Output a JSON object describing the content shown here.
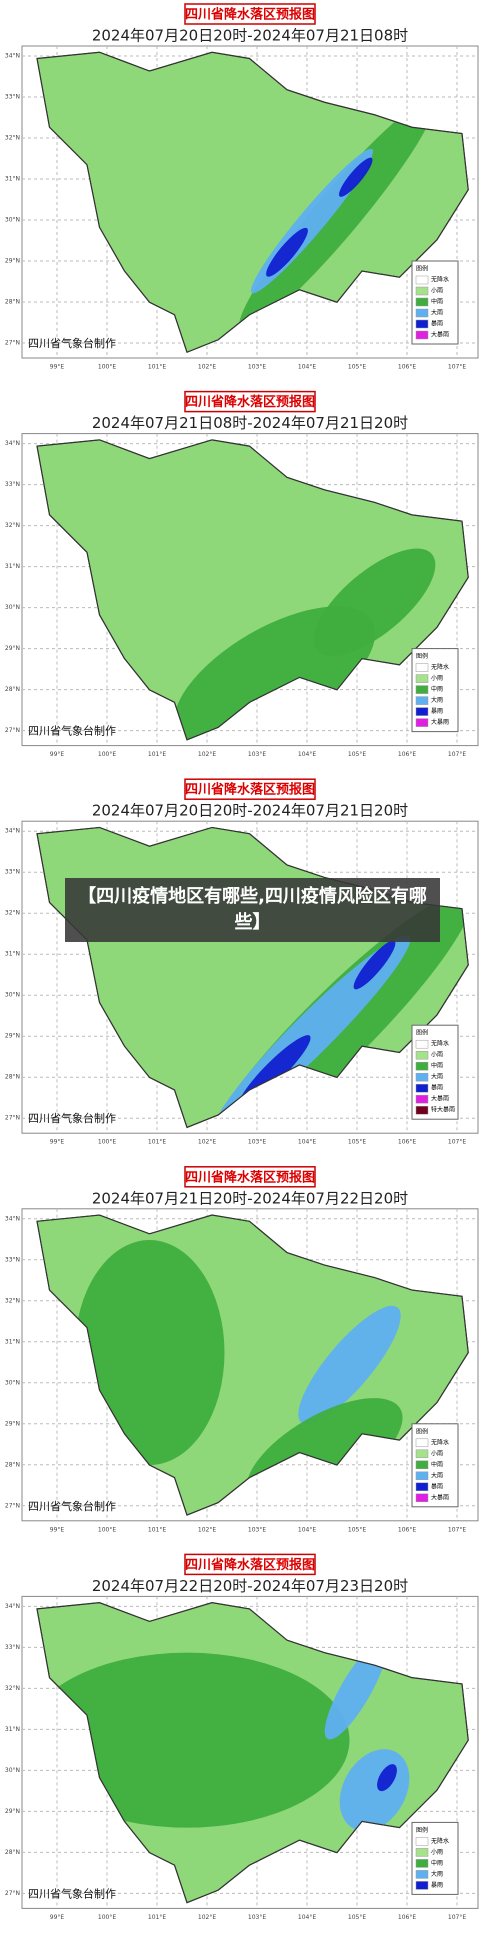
{
  "caption": "【四川疫情地区有哪些,四川疫情风险区有哪些】",
  "lat_labels": [
    "34°N",
    "33°N",
    "32°N",
    "31°N",
    "30°N",
    "29°N",
    "28°N",
    "27°N"
  ],
  "lon_labels": [
    "99°E",
    "100°E",
    "101°E",
    "102°E",
    "103°E",
    "104°E",
    "105°E",
    "106°E",
    "107°E"
  ],
  "panels": [
    {
      "header": "四川省降水落区预报图",
      "period": "2024年07月20日20时-2024年07月21日08时",
      "credit": "四川省气象台制作",
      "legend_title": "图例",
      "legend": [
        {
          "label": "无降水",
          "color": "#ffffff"
        },
        {
          "label": "小雨",
          "color": "#a6e28c"
        },
        {
          "label": "中雨",
          "color": "#3fae3f"
        },
        {
          "label": "大雨",
          "color": "#5fb0f0"
        },
        {
          "label": "暴雨",
          "color": "#1020d0"
        },
        {
          "label": "大暴雨",
          "color": "#e020e0"
        }
      ]
    },
    {
      "header": "四川省降水落区预报图",
      "period": "2024年07月21日08时-2024年07月21日20时",
      "credit": "四川省气象台制作",
      "legend_title": "图例",
      "legend": [
        {
          "label": "无降水",
          "color": "#ffffff"
        },
        {
          "label": "小雨",
          "color": "#a6e28c"
        },
        {
          "label": "中雨",
          "color": "#3fae3f"
        },
        {
          "label": "大雨",
          "color": "#5fb0f0"
        },
        {
          "label": "暴雨",
          "color": "#1020d0"
        },
        {
          "label": "大暴雨",
          "color": "#e020e0"
        }
      ]
    },
    {
      "header": "四川省降水落区预报图",
      "period": "2024年07月20日20时-2024年07月21日20时",
      "credit": "四川省气象台制作",
      "legend_title": "图例",
      "legend": [
        {
          "label": "无降水",
          "color": "#ffffff"
        },
        {
          "label": "小雨",
          "color": "#a6e28c"
        },
        {
          "label": "中雨",
          "color": "#3fae3f"
        },
        {
          "label": "大雨",
          "color": "#5fb0f0"
        },
        {
          "label": "暴雨",
          "color": "#1020d0"
        },
        {
          "label": "大暴雨",
          "color": "#e020e0"
        },
        {
          "label": "特大暴雨",
          "color": "#700020"
        }
      ]
    },
    {
      "header": "四川省降水落区预报图",
      "period": "2024年07月21日20时-2024年07月22日20时",
      "credit": "四川省气象台制作",
      "legend_title": "图例",
      "legend": [
        {
          "label": "无降水",
          "color": "#ffffff"
        },
        {
          "label": "小雨",
          "color": "#a6e28c"
        },
        {
          "label": "中雨",
          "color": "#3fae3f"
        },
        {
          "label": "大雨",
          "color": "#5fb0f0"
        },
        {
          "label": "暴雨",
          "color": "#1020d0"
        },
        {
          "label": "大暴雨",
          "color": "#e020e0"
        }
      ]
    },
    {
      "header": "四川省降水落区预报图",
      "period": "2024年07月22日20时-2024年07月23日20时",
      "credit": "四川省气象台制作",
      "legend_title": "图例",
      "legend": [
        {
          "label": "无降水",
          "color": "#ffffff"
        },
        {
          "label": "小雨",
          "color": "#a6e28c"
        },
        {
          "label": "中雨",
          "color": "#3fae3f"
        },
        {
          "label": "大雨",
          "color": "#5fb0f0"
        },
        {
          "label": "暴雨",
          "color": "#1020d0"
        }
      ]
    }
  ]
}
